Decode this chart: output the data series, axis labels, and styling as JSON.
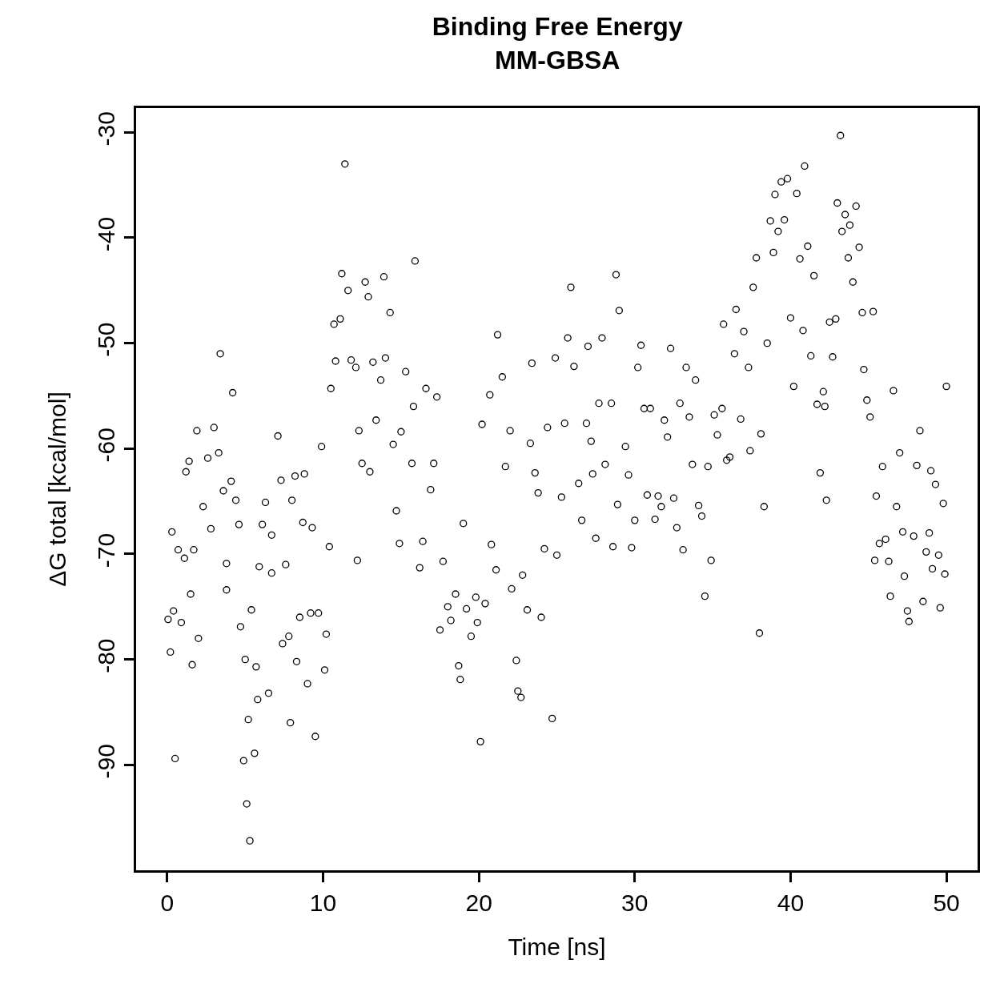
{
  "chart_data": {
    "type": "scatter",
    "title": "Binding Free Energy\nMM-GBSA",
    "xlabel": "Time [ns]",
    "ylabel": "ΔG total [kcal/mol]",
    "xlim": [
      -2,
      52
    ],
    "xticks": [
      0,
      10,
      20,
      30,
      40,
      50
    ],
    "ylim": [
      -100,
      -27.7
    ],
    "yticks": [
      -30,
      -40,
      -50,
      -60,
      -70,
      -80,
      -90
    ],
    "marker": "circle",
    "series": [
      {
        "color": "#000000",
        "x": [
          0.05,
          0.2,
          0.3,
          0.4,
          0.5,
          0.7,
          0.9,
          1.1,
          1.2,
          1.4,
          1.5,
          1.6,
          1.7,
          1.9,
          2.0,
          2.3,
          2.6,
          2.8,
          3.0,
          3.3,
          3.4,
          3.6,
          3.8,
          3.8,
          4.1,
          4.2,
          4.4,
          4.6,
          4.7,
          4.9,
          5.0,
          5.1,
          5.2,
          5.3,
          5.4,
          5.6,
          5.7,
          5.8,
          5.9,
          6.1,
          6.3,
          6.5,
          6.7,
          6.7,
          7.1,
          7.3,
          7.4,
          7.6,
          7.8,
          7.9,
          8.0,
          8.2,
          8.3,
          8.5,
          8.7,
          8.8,
          9.0,
          9.2,
          9.3,
          9.5,
          9.7,
          9.9,
          10.1,
          10.2,
          10.4,
          10.5,
          10.7,
          10.8,
          11.1,
          11.2,
          11.4,
          11.6,
          11.8,
          12.1,
          12.2,
          12.3,
          12.5,
          12.7,
          12.9,
          13.0,
          13.2,
          13.4,
          13.7,
          13.9,
          14.0,
          14.3,
          14.5,
          14.7,
          14.9,
          15.0,
          15.3,
          15.7,
          15.8,
          15.9,
          16.2,
          16.4,
          16.6,
          16.9,
          17.1,
          17.3,
          17.5,
          17.7,
          18.0,
          18.2,
          18.5,
          18.7,
          18.8,
          19.0,
          19.2,
          19.5,
          19.8,
          19.9,
          20.1,
          20.2,
          20.4,
          20.7,
          20.8,
          21.1,
          21.2,
          21.5,
          21.7,
          22.0,
          22.1,
          22.4,
          22.5,
          22.7,
          22.8,
          23.1,
          23.3,
          23.4,
          23.6,
          23.8,
          24.0,
          24.2,
          24.4,
          24.7,
          24.9,
          25.0,
          25.3,
          25.5,
          25.7,
          25.9,
          26.1,
          26.4,
          26.6,
          26.9,
          27.0,
          27.2,
          27.3,
          27.5,
          27.7,
          27.9,
          28.1,
          28.5,
          28.6,
          28.8,
          28.9,
          29.0,
          29.4,
          29.6,
          29.8,
          30.0,
          30.2,
          30.4,
          30.6,
          30.8,
          31.0,
          31.3,
          31.5,
          31.7,
          31.9,
          32.1,
          32.3,
          32.5,
          32.7,
          32.9,
          33.1,
          33.3,
          33.5,
          33.7,
          33.9,
          34.1,
          34.3,
          34.5,
          34.7,
          34.9,
          35.1,
          35.3,
          35.6,
          35.7,
          35.9,
          36.1,
          36.4,
          36.5,
          36.8,
          37.0,
          37.3,
          37.4,
          37.6,
          37.8,
          38.0,
          38.1,
          38.3,
          38.5,
          38.7,
          38.9,
          39.0,
          39.2,
          39.4,
          39.6,
          39.8,
          40.0,
          40.2,
          40.4,
          40.6,
          40.8,
          40.9,
          41.1,
          41.3,
          41.5,
          41.7,
          41.9,
          42.1,
          42.2,
          42.3,
          42.5,
          42.7,
          42.9,
          43.0,
          43.2,
          43.3,
          43.5,
          43.7,
          43.8,
          44.0,
          44.2,
          44.4,
          44.6,
          44.7,
          44.9,
          45.1,
          45.3,
          45.4,
          45.5,
          45.7,
          45.9,
          46.1,
          46.3,
          46.4,
          46.6,
          46.8,
          47.0,
          47.2,
          47.3,
          47.5,
          47.6,
          47.9,
          48.1,
          48.3,
          48.5,
          48.7,
          48.9,
          49.0,
          49.1,
          49.3,
          49.5,
          49.6,
          49.8,
          49.9,
          50.0
        ],
        "values": [
          -76.2,
          -79.3,
          -67.9,
          -75.4,
          -89.4,
          -69.6,
          -76.5,
          -70.4,
          -62.2,
          -61.2,
          -73.8,
          -80.5,
          -69.6,
          -58.3,
          -78.0,
          -65.5,
          -60.9,
          -67.6,
          -58.0,
          -60.4,
          -51.0,
          -64.0,
          -70.9,
          -73.4,
          -63.1,
          -54.7,
          -64.9,
          -67.2,
          -76.9,
          -89.6,
          -80.0,
          -93.7,
          -85.7,
          -97.2,
          -75.3,
          -88.9,
          -80.7,
          -83.8,
          -71.2,
          -67.2,
          -65.1,
          -83.2,
          -71.8,
          -68.2,
          -58.8,
          -63.0,
          -78.5,
          -71.0,
          -77.8,
          -86.0,
          -64.9,
          -62.6,
          -80.2,
          -76.0,
          -67.0,
          -62.4,
          -82.3,
          -75.6,
          -67.5,
          -87.3,
          -75.6,
          -59.8,
          -81.0,
          -77.6,
          -69.3,
          -54.3,
          -48.2,
          -51.7,
          -47.7,
          -43.4,
          -33.0,
          -45.0,
          -51.6,
          -52.3,
          -70.6,
          -58.3,
          -61.4,
          -44.2,
          -45.6,
          -62.2,
          -51.8,
          -57.3,
          -53.5,
          -43.7,
          -51.4,
          -47.1,
          -59.6,
          -65.9,
          -69.0,
          -58.4,
          -52.7,
          -61.4,
          -56.0,
          -42.2,
          -71.3,
          -68.8,
          -54.3,
          -63.9,
          -61.4,
          -55.1,
          -77.2,
          -70.7,
          -75.0,
          -76.3,
          -73.8,
          -80.6,
          -81.9,
          -67.1,
          -75.2,
          -77.8,
          -74.1,
          -76.5,
          -87.8,
          -57.7,
          -74.7,
          -54.9,
          -69.1,
          -71.5,
          -49.2,
          -53.2,
          -61.7,
          -58.3,
          -73.3,
          -80.1,
          -83.0,
          -83.6,
          -72.0,
          -75.3,
          -59.5,
          -51.9,
          -62.3,
          -64.2,
          -76.0,
          -69.5,
          -58.0,
          -85.6,
          -51.4,
          -70.1,
          -64.6,
          -57.6,
          -49.5,
          -44.7,
          -52.2,
          -63.3,
          -66.8,
          -57.6,
          -50.3,
          -59.3,
          -62.4,
          -68.5,
          -55.7,
          -49.5,
          -61.5,
          -55.7,
          -69.3,
          -43.5,
          -65.3,
          -46.9,
          -59.8,
          -62.5,
          -69.4,
          -66.8,
          -52.3,
          -50.2,
          -56.2,
          -64.4,
          -56.2,
          -66.7,
          -64.5,
          -65.5,
          -57.3,
          -58.9,
          -50.5,
          -64.7,
          -67.5,
          -55.7,
          -69.6,
          -52.3,
          -57.0,
          -61.5,
          -53.5,
          -65.4,
          -66.4,
          -74.0,
          -61.7,
          -70.6,
          -56.8,
          -58.7,
          -56.2,
          -48.2,
          -61.1,
          -60.8,
          -51.0,
          -46.8,
          -57.2,
          -48.9,
          -52.3,
          -60.2,
          -44.7,
          -41.9,
          -77.5,
          -58.6,
          -65.5,
          -50.0,
          -38.4,
          -41.4,
          -35.9,
          -39.4,
          -34.7,
          -38.3,
          -34.4,
          -47.6,
          -54.1,
          -35.8,
          -42.0,
          -48.8,
          -33.2,
          -40.8,
          -51.2,
          -43.6,
          -55.8,
          -62.3,
          -54.6,
          -56.0,
          -64.9,
          -48.0,
          -51.3,
          -47.7,
          -36.7,
          -30.3,
          -39.4,
          -37.8,
          -41.9,
          -38.8,
          -44.2,
          -37.0,
          -40.9,
          -47.1,
          -52.5,
          -55.4,
          -57.0,
          -47.0,
          -70.6,
          -64.5,
          -69.0,
          -61.7,
          -68.6,
          -70.7,
          -74.0,
          -54.5,
          -65.5,
          -60.4,
          -67.9,
          -72.1,
          -75.4,
          -76.4,
          -68.3,
          -61.6,
          -58.3,
          -74.5,
          -69.8,
          -68.0,
          -62.1,
          -71.4,
          -63.4,
          -70.1,
          -75.1,
          -65.2,
          -71.9,
          -54.1
        ]
      }
    ]
  }
}
